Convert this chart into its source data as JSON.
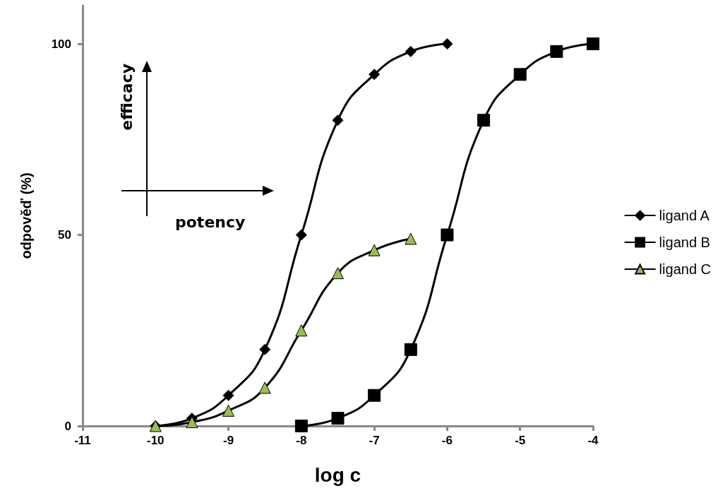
{
  "chart_data": {
    "type": "line",
    "xlabel": "log c",
    "ylabel": "odpověď (%)",
    "xlim": [
      -11,
      -4
    ],
    "xticks": [
      -11,
      -10,
      -9,
      -8,
      -7,
      -6,
      -5,
      -4
    ],
    "ylim": [
      0,
      110
    ],
    "yticks": [
      0,
      50,
      100
    ],
    "grid": false,
    "legend": "right",
    "line_style": "solid",
    "annotations": [
      "efficacy",
      "potency"
    ],
    "series": [
      {
        "name": "ligand A",
        "color": "#000000",
        "marker": "diamond",
        "x": [
          -10,
          -9.5,
          -9,
          -8.5,
          -8,
          -7.5,
          -7,
          -6.5,
          -6
        ],
        "values": [
          0,
          2,
          8,
          20,
          50,
          80,
          92,
          98,
          100
        ]
      },
      {
        "name": "ligand B",
        "color": "#000000",
        "marker": "square",
        "x": [
          -8,
          -7.5,
          -7,
          -6.5,
          -6,
          -5.5,
          -5,
          -4.5,
          -4
        ],
        "values": [
          0,
          2,
          8,
          20,
          50,
          80,
          92,
          98,
          100
        ]
      },
      {
        "name": "ligand C",
        "color": "#9bbb59",
        "marker": "triangle",
        "x": [
          -10,
          -9.5,
          -9,
          -8.5,
          -8,
          -7.5,
          -7,
          -6.5
        ],
        "values": [
          0,
          1,
          4,
          10,
          25,
          40,
          46,
          49
        ]
      }
    ]
  }
}
